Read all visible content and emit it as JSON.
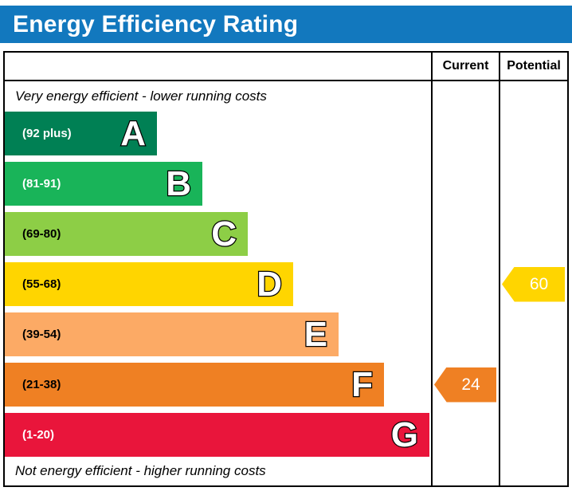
{
  "title": "Energy Efficiency Rating",
  "columns": {
    "current": "Current",
    "potential": "Potential"
  },
  "top_note": "Very energy efficient - lower running costs",
  "bottom_note": "Not energy efficient - higher running costs",
  "bands": [
    {
      "letter": "A",
      "range": "(92 plus)",
      "color": "#008054",
      "text_color": "#ffffff"
    },
    {
      "letter": "B",
      "range": "(81-91)",
      "color": "#19b459",
      "text_color": "#ffffff"
    },
    {
      "letter": "C",
      "range": "(69-80)",
      "color": "#8dce46",
      "text_color": "#000000"
    },
    {
      "letter": "D",
      "range": "(55-68)",
      "color": "#ffd500",
      "text_color": "#000000"
    },
    {
      "letter": "E",
      "range": "(39-54)",
      "color": "#fcaa65",
      "text_color": "#000000"
    },
    {
      "letter": "F",
      "range": "(21-38)",
      "color": "#ef8023",
      "text_color": "#000000"
    },
    {
      "letter": "G",
      "range": "(1-20)",
      "color": "#e9153b",
      "text_color": "#ffffff"
    }
  ],
  "current": {
    "value": "24",
    "band": "F",
    "color": "#ef8023"
  },
  "potential": {
    "value": "60",
    "band": "D",
    "color": "#ffd500"
  },
  "title_bar_color": "#1278be",
  "chart_data": {
    "type": "bar",
    "title": "Energy Efficiency Rating",
    "categories": [
      "A (92 plus)",
      "B (81-91)",
      "C (69-80)",
      "D (55-68)",
      "E (39-54)",
      "F (21-38)",
      "G (1-20)"
    ],
    "band_colors": [
      "#008054",
      "#19b459",
      "#8dce46",
      "#ffd500",
      "#fcaa65",
      "#ef8023",
      "#e9153b"
    ],
    "series": [
      {
        "name": "Current",
        "value": 24,
        "band": "F"
      },
      {
        "name": "Potential",
        "value": 60,
        "band": "D"
      }
    ],
    "scale_min": 1,
    "scale_max": 100,
    "annotations": [
      "Very energy efficient - lower running costs",
      "Not energy efficient - higher running costs"
    ],
    "legend_position": "none",
    "grid": false
  }
}
